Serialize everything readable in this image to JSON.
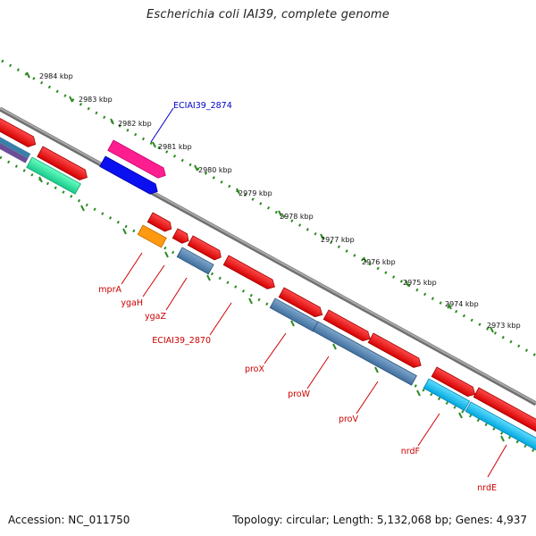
{
  "title": "Escherichia coli IAI39, complete genome",
  "footer": {
    "accession": "Accession: NC_011750",
    "summary": "Topology: circular; Length: 5,132,068 bp; Genes: 4,937"
  },
  "colors": {
    "backbone": "#8a8a8a",
    "ruler_ticks": "#2e8b22",
    "gene_label": "#cc0000",
    "highlight_label": "#0000cc"
  },
  "kbp_ticks": [
    "2984 kbp",
    "2983 kbp",
    "2982 kbp",
    "2981 kbp",
    "2980 kbp",
    "2979 kbp",
    "2978 kbp",
    "2977 kbp",
    "2976 kbp",
    "2975 kbp",
    "2974 kbp",
    "2973 kbp"
  ],
  "gene_labels": [
    "mprA",
    "ygaH",
    "ygaZ",
    "ECIAI39_2870",
    "proX",
    "proW",
    "proV",
    "nrdF",
    "nrdE"
  ],
  "highlight_label": "ECIAI39_2874"
}
